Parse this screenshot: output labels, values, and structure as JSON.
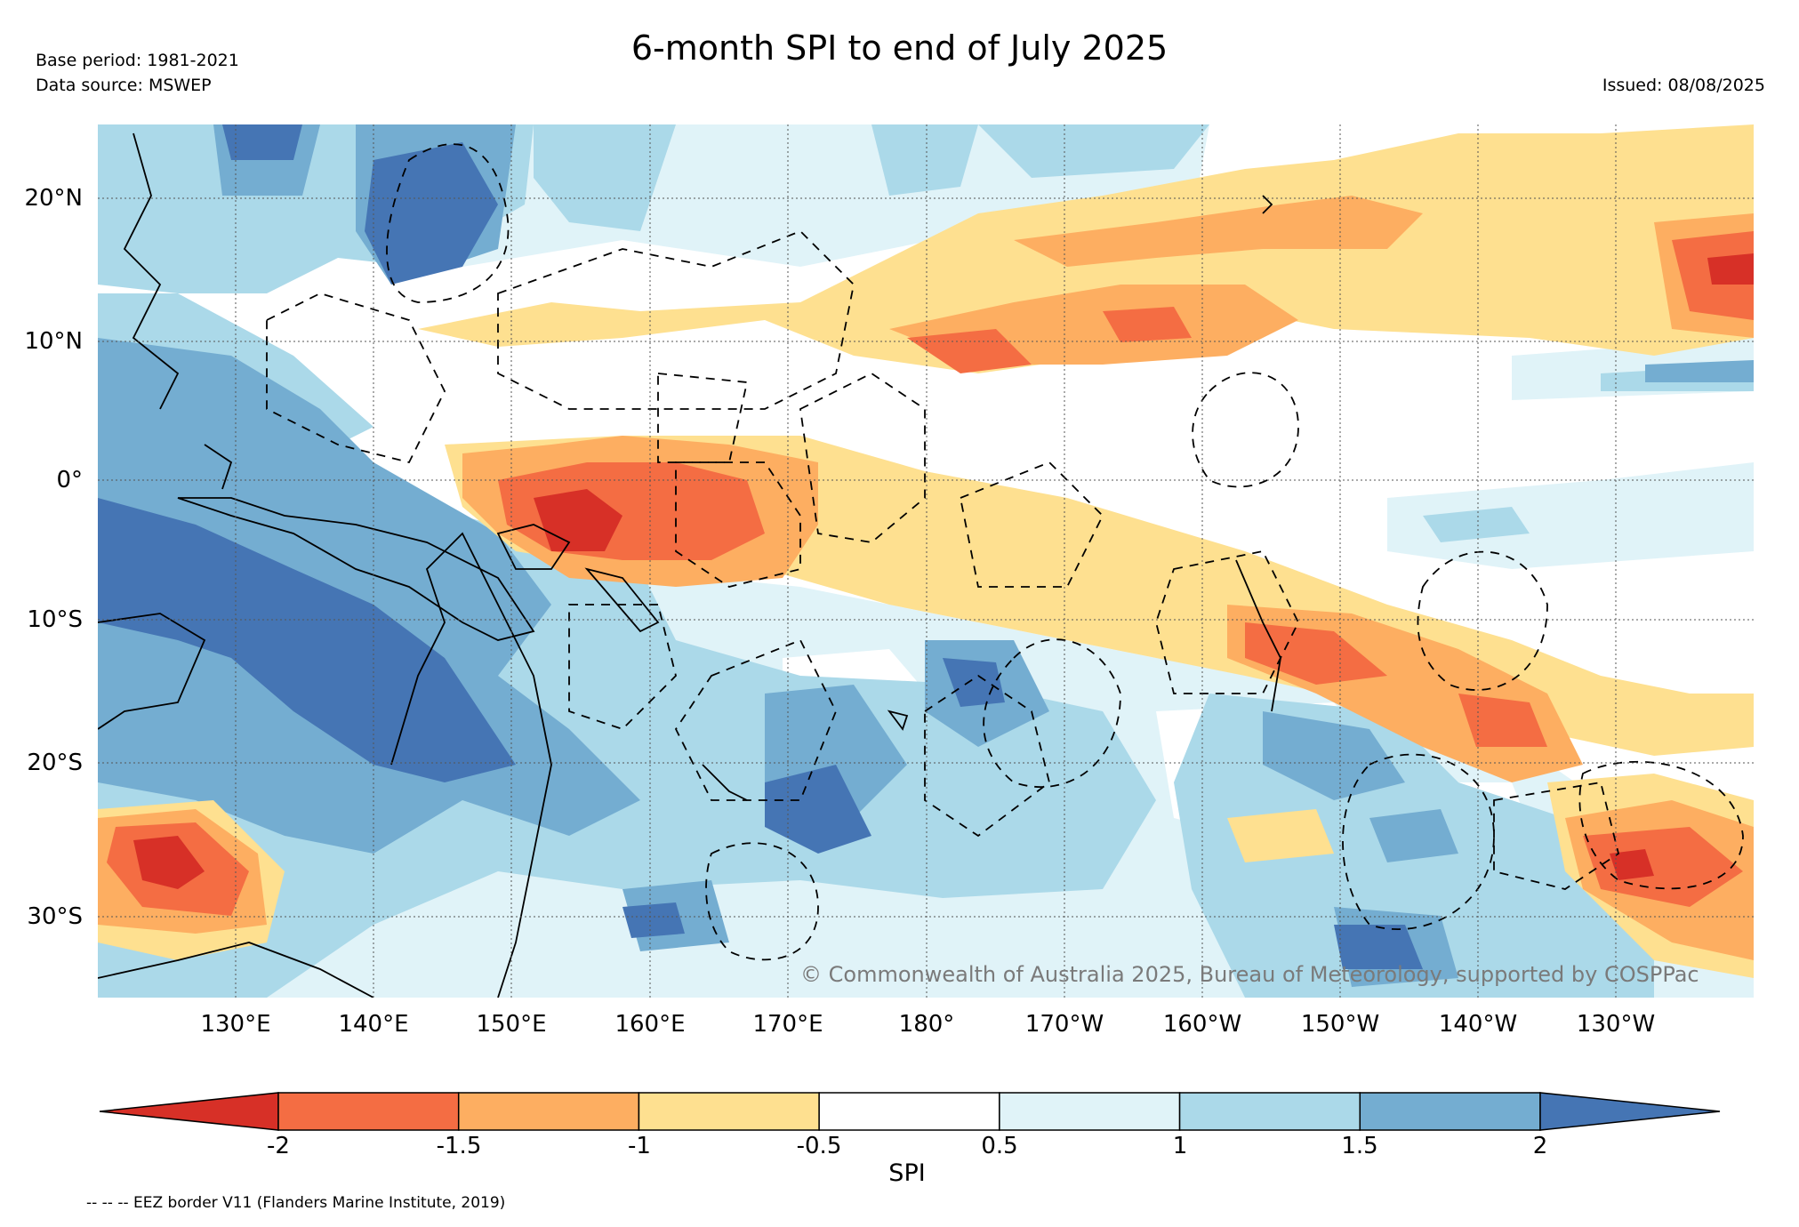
{
  "title": "6-month SPI to end of July 2025",
  "base_period": "Base period: 1981-2021",
  "data_source": "Data source: MSWEP",
  "issued": "Issued: 08/08/2025",
  "copyright": "© Commonwealth of Australia 2025, Bureau of Meteorology, supported by COSPPac",
  "eez_note": "-- -- -- EEZ border V11 (Flanders Marine Institute, 2019)",
  "lat_labels": [
    "20°N",
    "10°N",
    "0°",
    "10°S",
    "20°S",
    "30°S"
  ],
  "lon_labels": [
    "130°E",
    "140°E",
    "150°E",
    "160°E",
    "170°E",
    "180°",
    "170°W",
    "160°W",
    "150°W",
    "140°W",
    "130°W"
  ],
  "colorbar": {
    "label": "SPI",
    "ticks": [
      "-2",
      "-1.5",
      "-1",
      "-0.5",
      "0.5",
      "1",
      "1.5",
      "2"
    ],
    "colors": [
      "#d73027",
      "#f46d43",
      "#fdae61",
      "#fee090",
      "#ffffff",
      "#e0f3f8",
      "#abd9e9",
      "#74add1",
      "#4575b4"
    ]
  }
}
